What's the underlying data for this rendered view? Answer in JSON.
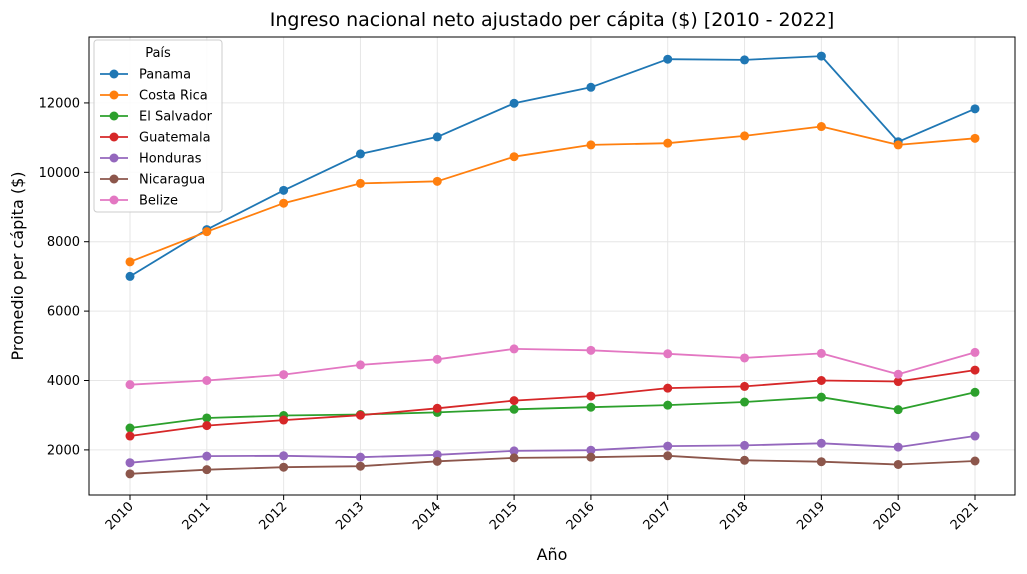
{
  "chart_data": {
    "type": "line",
    "title": "Ingreso nacional neto ajustado per cápita ($) [2010 - 2022]",
    "xlabel": "Año",
    "ylabel": "Promedio per cápita ($)",
    "x": [
      "2010",
      "2011",
      "2012",
      "2013",
      "2014",
      "2015",
      "2016",
      "2017",
      "2018",
      "2019",
      "2020",
      "2021"
    ],
    "ylim": [
      700,
      13900
    ],
    "yticks": [
      "2000",
      "4000",
      "6000",
      "8000",
      "10000",
      "12000"
    ],
    "grid": true,
    "legend": {
      "title": "País",
      "position": "top-left"
    },
    "series": [
      {
        "name": "Panama",
        "color": "#1f77b4",
        "values": [
          7000,
          8350,
          9480,
          10530,
          11020,
          11990,
          12450,
          13260,
          13240,
          13350,
          10880,
          11830
        ]
      },
      {
        "name": "Costa Rica",
        "color": "#ff7f0e",
        "values": [
          7420,
          8290,
          9110,
          9680,
          9740,
          10450,
          10790,
          10840,
          11050,
          11320,
          10790,
          10980
        ]
      },
      {
        "name": "El Salvador",
        "color": "#2ca02c",
        "values": [
          2630,
          2920,
          2990,
          3020,
          3080,
          3170,
          3230,
          3290,
          3380,
          3520,
          3160,
          3660
        ]
      },
      {
        "name": "Guatemala",
        "color": "#d62728",
        "values": [
          2400,
          2700,
          2860,
          3000,
          3200,
          3420,
          3550,
          3780,
          3830,
          4000,
          3970,
          4300
        ]
      },
      {
        "name": "Honduras",
        "color": "#9467bd",
        "values": [
          1630,
          1820,
          1830,
          1790,
          1860,
          1970,
          1990,
          2110,
          2130,
          2190,
          2080,
          2400
        ]
      },
      {
        "name": "Nicaragua",
        "color": "#8c564b",
        "values": [
          1310,
          1430,
          1500,
          1530,
          1670,
          1770,
          1790,
          1830,
          1700,
          1660,
          1580,
          1680
        ]
      },
      {
        "name": "Belize",
        "color": "#e377c2",
        "values": [
          3880,
          4000,
          4170,
          4450,
          4610,
          4910,
          4870,
          4770,
          4650,
          4780,
          4180,
          4810
        ]
      }
    ]
  }
}
